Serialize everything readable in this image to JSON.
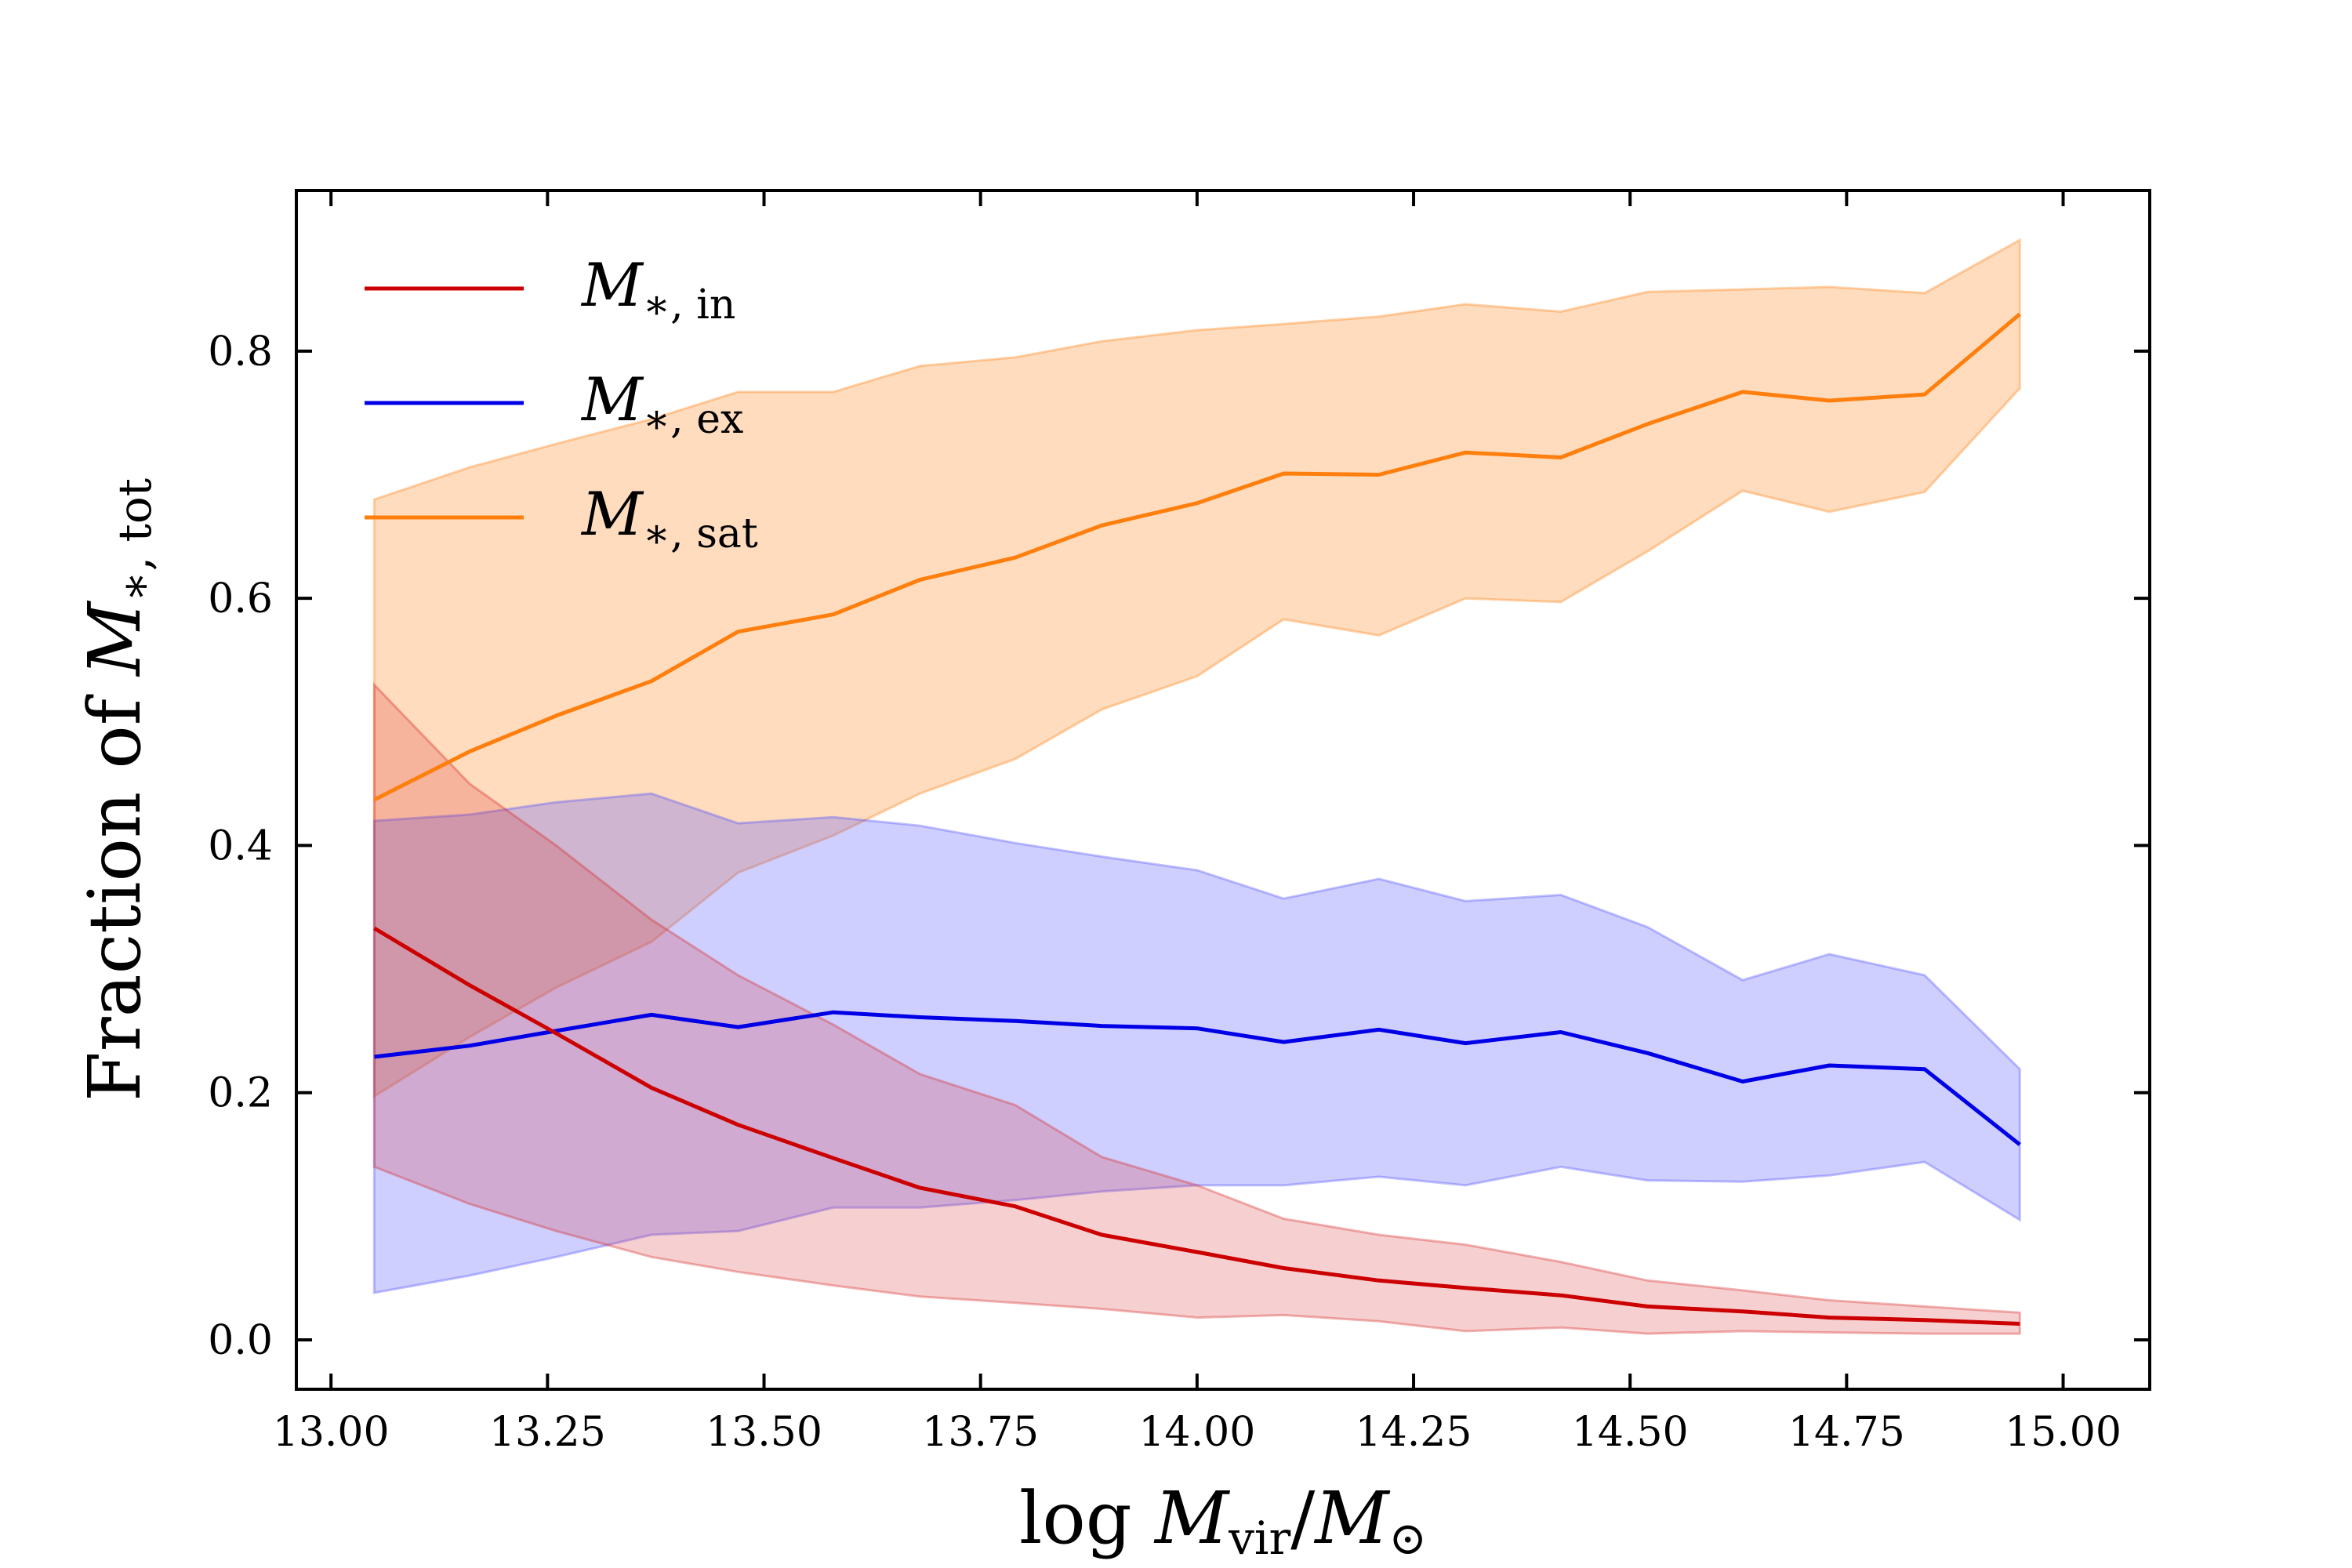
{
  "chart_data": {
    "type": "line",
    "title": "",
    "xlabel": {
      "prefix": "log ",
      "main": "M",
      "sub": "vir",
      "slash": "/",
      "main2": "M",
      "sub2": "⊙"
    },
    "ylabel": {
      "prefix": "Fraction of ",
      "main": "M",
      "sub": "∗, tot"
    },
    "xlim": [
      12.96,
      15.1
    ],
    "ylim": [
      -0.04,
      0.93
    ],
    "xticks": [
      13.0,
      13.25,
      13.5,
      13.75,
      14.0,
      14.25,
      14.5,
      14.75,
      15.0
    ],
    "xtick_labels": [
      "13.00",
      "13.25",
      "13.50",
      "13.75",
      "14.00",
      "14.25",
      "14.50",
      "14.75",
      "15.00"
    ],
    "yticks": [
      0.0,
      0.2,
      0.4,
      0.6,
      0.8
    ],
    "ytick_labels": [
      "0.0",
      "0.2",
      "0.4",
      "0.6",
      "0.8"
    ],
    "legend_position": "top-left",
    "x": [
      13.05,
      13.16,
      13.26,
      13.37,
      13.47,
      13.58,
      13.68,
      13.79,
      13.89,
      14.0,
      14.1,
      14.21,
      14.31,
      14.42,
      14.52,
      14.63,
      14.73,
      14.84,
      14.95
    ],
    "series": [
      {
        "name": "in",
        "label_main": "M",
        "label_sub": "∗, in",
        "color": "#cc0000",
        "band_color": "#d62728",
        "values": [
          0.333,
          0.287,
          0.248,
          0.204,
          0.174,
          0.147,
          0.123,
          0.108,
          0.085,
          0.071,
          0.058,
          0.048,
          0.042,
          0.036,
          0.027,
          0.023,
          0.018,
          0.016,
          0.013
        ],
        "upper": [
          0.53,
          0.45,
          0.4,
          0.34,
          0.295,
          0.255,
          0.215,
          0.19,
          0.148,
          0.125,
          0.098,
          0.085,
          0.077,
          0.063,
          0.048,
          0.04,
          0.032,
          0.027,
          0.022
        ],
        "lower": [
          0.14,
          0.11,
          0.088,
          0.067,
          0.055,
          0.044,
          0.035,
          0.03,
          0.025,
          0.018,
          0.02,
          0.015,
          0.007,
          0.01,
          0.005,
          0.007,
          0.006,
          0.005,
          0.005
        ]
      },
      {
        "name": "ex",
        "label_main": "M",
        "label_sub": "∗, ex",
        "color": "#0000e6",
        "band_color": "#4d4dff",
        "values": [
          0.229,
          0.238,
          0.25,
          0.263,
          0.253,
          0.265,
          0.261,
          0.258,
          0.254,
          0.252,
          0.241,
          0.251,
          0.24,
          0.249,
          0.232,
          0.209,
          0.222,
          0.219,
          0.158
        ],
        "upper": [
          0.42,
          0.425,
          0.435,
          0.442,
          0.418,
          0.423,
          0.416,
          0.402,
          0.391,
          0.38,
          0.357,
          0.373,
          0.355,
          0.36,
          0.334,
          0.291,
          0.312,
          0.295,
          0.219
        ],
        "lower": [
          0.038,
          0.052,
          0.067,
          0.085,
          0.088,
          0.107,
          0.107,
          0.113,
          0.12,
          0.125,
          0.125,
          0.132,
          0.125,
          0.14,
          0.129,
          0.128,
          0.133,
          0.144,
          0.097
        ]
      },
      {
        "name": "sat",
        "label_main": "M",
        "label_sub": "∗, sat",
        "color": "#ff7f0e",
        "band_color": "#ff7f0e",
        "values": [
          0.437,
          0.476,
          0.505,
          0.533,
          0.573,
          0.587,
          0.615,
          0.633,
          0.659,
          0.677,
          0.701,
          0.7,
          0.718,
          0.714,
          0.741,
          0.767,
          0.76,
          0.765,
          0.83
        ],
        "upper": [
          0.68,
          0.706,
          0.725,
          0.745,
          0.767,
          0.767,
          0.788,
          0.795,
          0.808,
          0.817,
          0.822,
          0.828,
          0.838,
          0.832,
          0.848,
          0.85,
          0.852,
          0.847,
          0.89
        ],
        "lower": [
          0.197,
          0.245,
          0.285,
          0.322,
          0.378,
          0.408,
          0.442,
          0.47,
          0.51,
          0.537,
          0.583,
          0.57,
          0.6,
          0.597,
          0.638,
          0.687,
          0.67,
          0.686,
          0.77
        ]
      }
    ]
  }
}
